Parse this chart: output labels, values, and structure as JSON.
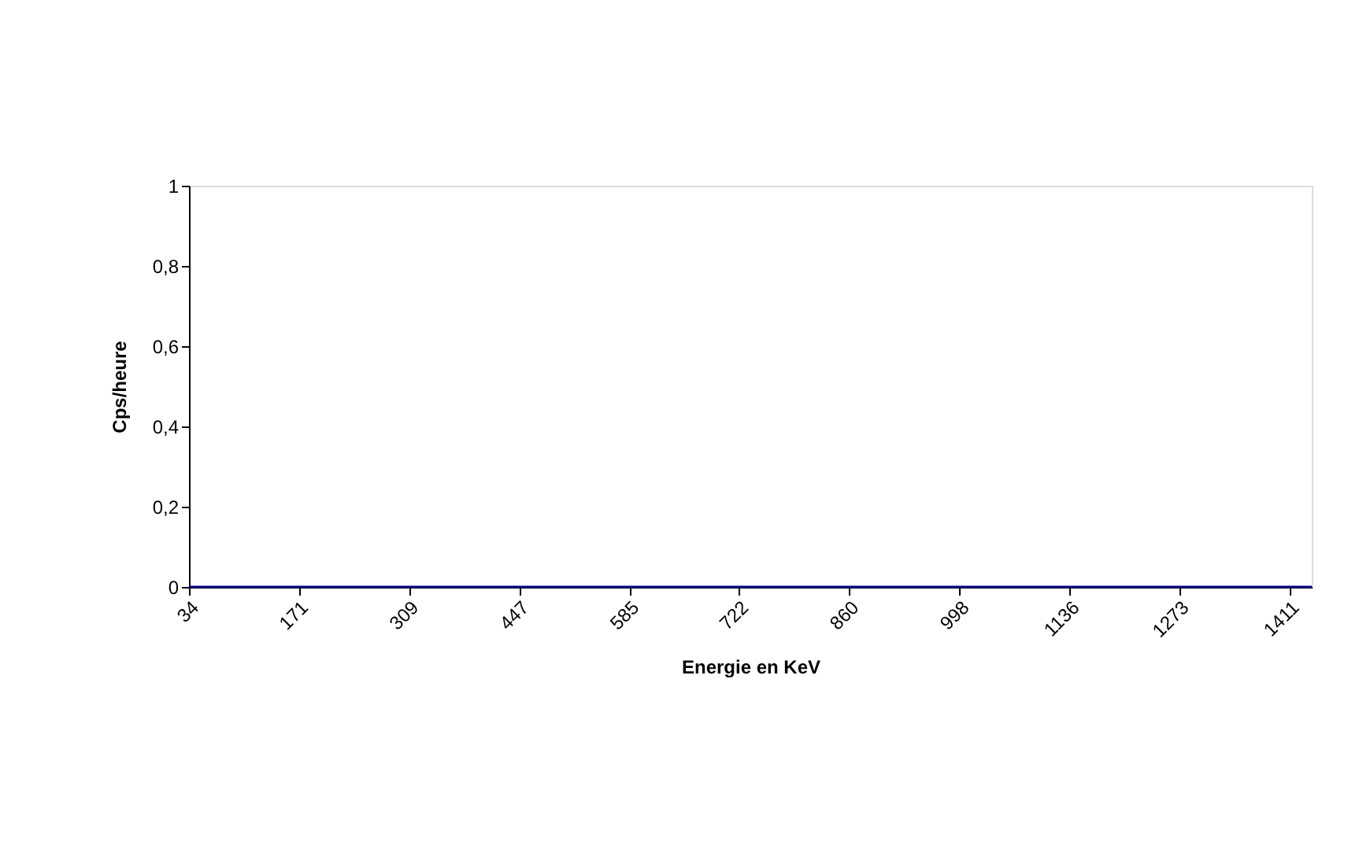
{
  "chart_data": {
    "type": "line",
    "xlabel": "Energie en KeV",
    "ylabel": "Cps/heure",
    "x": [
      34,
      1439
    ],
    "series": [
      {
        "color": "#000080",
        "values": [
          0,
          0
        ]
      }
    ],
    "xlim": [
      34,
      1439
    ],
    "xticks": [
      34,
      171,
      309,
      447,
      585,
      722,
      860,
      998,
      1136,
      1273,
      1411
    ],
    "ylim": [
      0,
      1
    ],
    "yticks": [
      0,
      {
        "value": 0.2,
        "label": "0,2"
      },
      {
        "value": 0.4,
        "label": "0,4"
      },
      {
        "value": 0.6,
        "label": "0,6"
      },
      {
        "value": 0.8,
        "label": "0,8"
      },
      1
    ],
    "grid": false,
    "marker": "none",
    "legend": false
  }
}
